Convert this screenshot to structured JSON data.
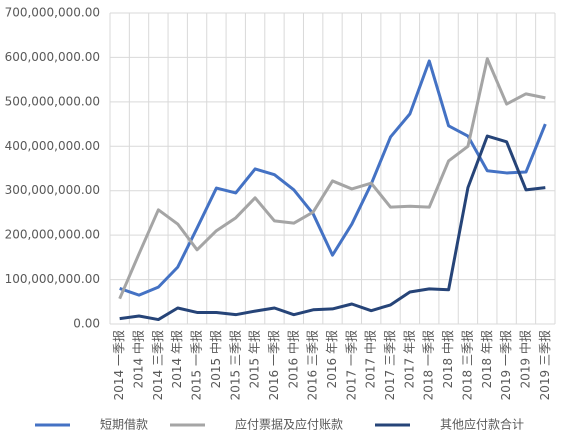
{
  "chart_data": {
    "type": "line",
    "categories": [
      "2014 一季报",
      "2014 中报",
      "2014 三季报",
      "2014 年报",
      "2015 一季报",
      "2015 中报",
      "2015 三季报",
      "2015 年报",
      "2016 一季报",
      "2016 中报",
      "2016 三季报",
      "2016 年报",
      "2017 一季报",
      "2017 中报",
      "2017 三季报",
      "2017 年报",
      "2018 一季报",
      "2018 中报",
      "2018 三季报",
      "2018 年报",
      "2019 一季报",
      "2019 中报",
      "2019 三季报"
    ],
    "series": [
      {
        "name": "短期借款",
        "color": "#4472c4",
        "values": [
          80000000,
          65000000,
          83000000,
          128000000,
          216000000,
          306000000,
          295000000,
          349000000,
          336000000,
          302000000,
          248000000,
          155000000,
          225000000,
          315000000,
          421000000,
          473000000,
          592000000,
          446000000,
          423000000,
          345000000,
          340000000,
          342000000,
          450000000
        ]
      },
      {
        "name": "应付票据及应付账款",
        "color": "#a5a5a5",
        "values": [
          57000000,
          158000000,
          257000000,
          225000000,
          167000000,
          210000000,
          239000000,
          284000000,
          232000000,
          227000000,
          252000000,
          322000000,
          304000000,
          317000000,
          263000000,
          265000000,
          263000000,
          367000000,
          400000000,
          597000000,
          495000000,
          518000000,
          509000000
        ]
      },
      {
        "name": "其他应付款合计",
        "color": "#264478",
        "values": [
          12000000,
          18000000,
          10000000,
          36000000,
          26000000,
          26000000,
          21000000,
          29000000,
          36000000,
          21000000,
          32000000,
          34000000,
          45000000,
          30000000,
          43000000,
          72000000,
          79000000,
          77000000,
          307000000,
          423000000,
          410000000,
          302000000,
          307000000
        ]
      }
    ],
    "ylim": [
      0,
      700000000
    ],
    "yticks": [
      {
        "value": 0,
        "label": "0.00"
      },
      {
        "value": 100000000,
        "label": "100,000,000.00"
      },
      {
        "value": 200000000,
        "label": "200,000,000.00"
      },
      {
        "value": 300000000,
        "label": "300,000,000.00"
      },
      {
        "value": 400000000,
        "label": "400,000,000.00"
      },
      {
        "value": 500000000,
        "label": "500,000,000.00"
      },
      {
        "value": 600000000,
        "label": "600,000,000.00"
      },
      {
        "value": 700000000,
        "label": "700,000,000.00"
      }
    ],
    "grid": true,
    "legend": "bottom"
  }
}
